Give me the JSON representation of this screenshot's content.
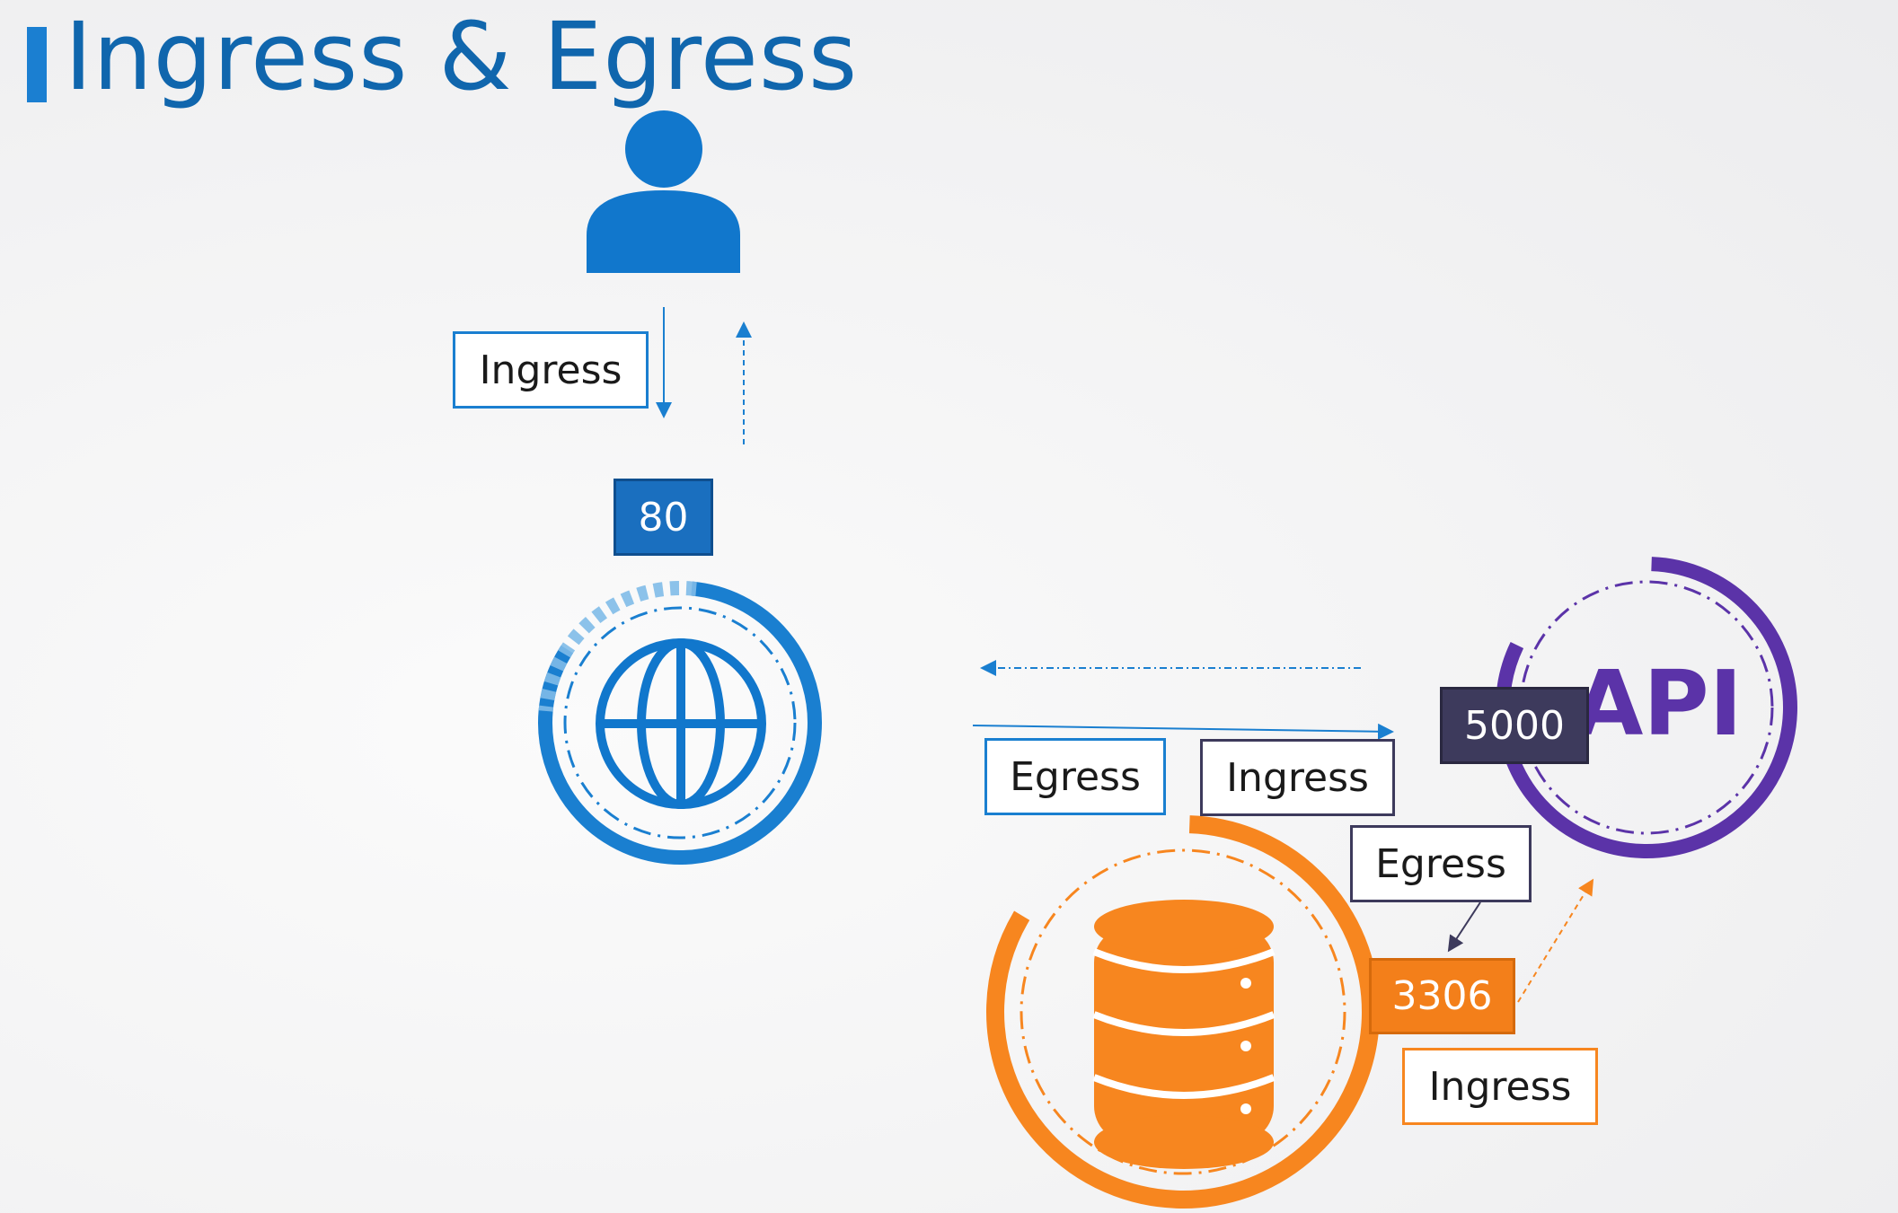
{
  "title": "Ingress & Egress",
  "nodes": {
    "user": {
      "icon": "user-icon"
    },
    "web": {
      "icon": "globe-icon",
      "port": "80"
    },
    "api": {
      "label": "API",
      "port": "5000"
    },
    "db": {
      "icon": "database-icon",
      "port": "3306"
    }
  },
  "labels": {
    "user_web_ingress": "Ingress",
    "web_egress": "Egress",
    "api_ingress": "Ingress",
    "db_egress": "Egress",
    "db_ingress": "Ingress"
  },
  "colors": {
    "title": "#1066ad",
    "web_blue": "#1a7fd0",
    "api_purple": "#5b33a8",
    "api_port_bg": "#3d3a5c",
    "db_orange": "#f7861f"
  }
}
